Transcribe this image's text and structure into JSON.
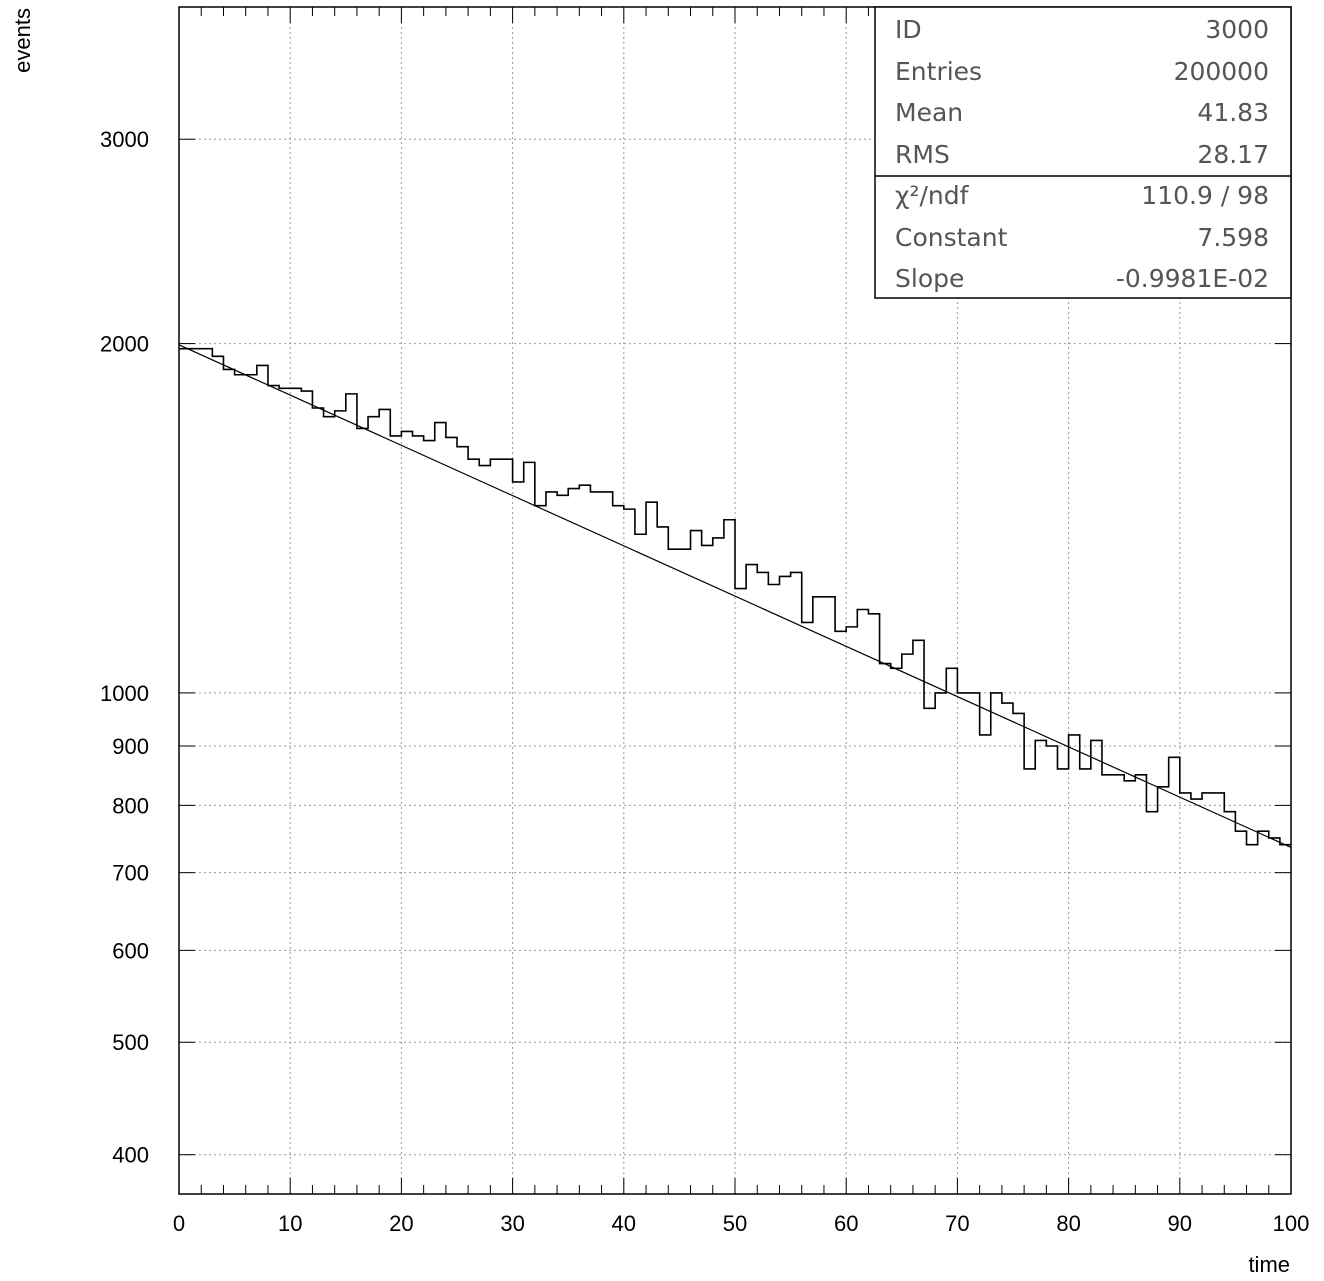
{
  "chart_data": {
    "type": "histogram",
    "title": "",
    "xlabel": "time",
    "ylabel": "events",
    "xlim": [
      0,
      100
    ],
    "ylim": [
      370,
      3900
    ],
    "yscale": "log",
    "grid": true,
    "x_ticks": [
      0,
      10,
      20,
      30,
      40,
      50,
      60,
      70,
      80,
      90,
      100
    ],
    "y_ticks": [
      400,
      500,
      600,
      700,
      800,
      900,
      1000,
      2000,
      3000
    ],
    "bin_edges_start": 0,
    "bin_width": 1,
    "series": [
      {
        "kind": "histogram",
        "values": [
          1980,
          1980,
          1980,
          1950,
          1900,
          1880,
          1880,
          1915,
          1840,
          1830,
          1830,
          1820,
          1760,
          1730,
          1750,
          1810,
          1690,
          1730,
          1755,
          1665,
          1680,
          1665,
          1650,
          1710,
          1660,
          1630,
          1590,
          1570,
          1590,
          1590,
          1520,
          1580,
          1450,
          1490,
          1480,
          1500,
          1510,
          1490,
          1490,
          1450,
          1440,
          1370,
          1460,
          1390,
          1330,
          1330,
          1380,
          1340,
          1360,
          1410,
          1230,
          1290,
          1270,
          1240,
          1260,
          1270,
          1150,
          1210,
          1210,
          1130,
          1140,
          1180,
          1170,
          1060,
          1050,
          1080,
          1110,
          970,
          1000,
          1050,
          1000,
          1000,
          920,
          1000,
          980,
          960,
          860,
          910,
          900,
          860,
          920,
          860,
          910,
          850,
          850,
          840,
          850,
          790,
          830,
          880,
          820,
          810,
          820,
          820,
          790,
          760,
          740,
          760,
          750,
          740
        ]
      },
      {
        "kind": "fit-line",
        "function": "exp(Constant + Slope*x)",
        "x": [
          0,
          100
        ],
        "values": [
          1995,
          736
        ]
      }
    ],
    "stats_box": {
      "rows": [
        {
          "label": "ID",
          "value": "3000"
        },
        {
          "label": "Entries",
          "value": "200000"
        },
        {
          "label": "Mean",
          "value": "41.83"
        },
        {
          "label": "RMS",
          "value": "28.17"
        }
      ],
      "fit_rows": [
        {
          "label": "χ²/ndf",
          "value": "110.9 / 98"
        },
        {
          "label": "Constant",
          "value": "7.598"
        },
        {
          "label": "Slope",
          "value": "-0.9981E-02"
        }
      ]
    }
  }
}
